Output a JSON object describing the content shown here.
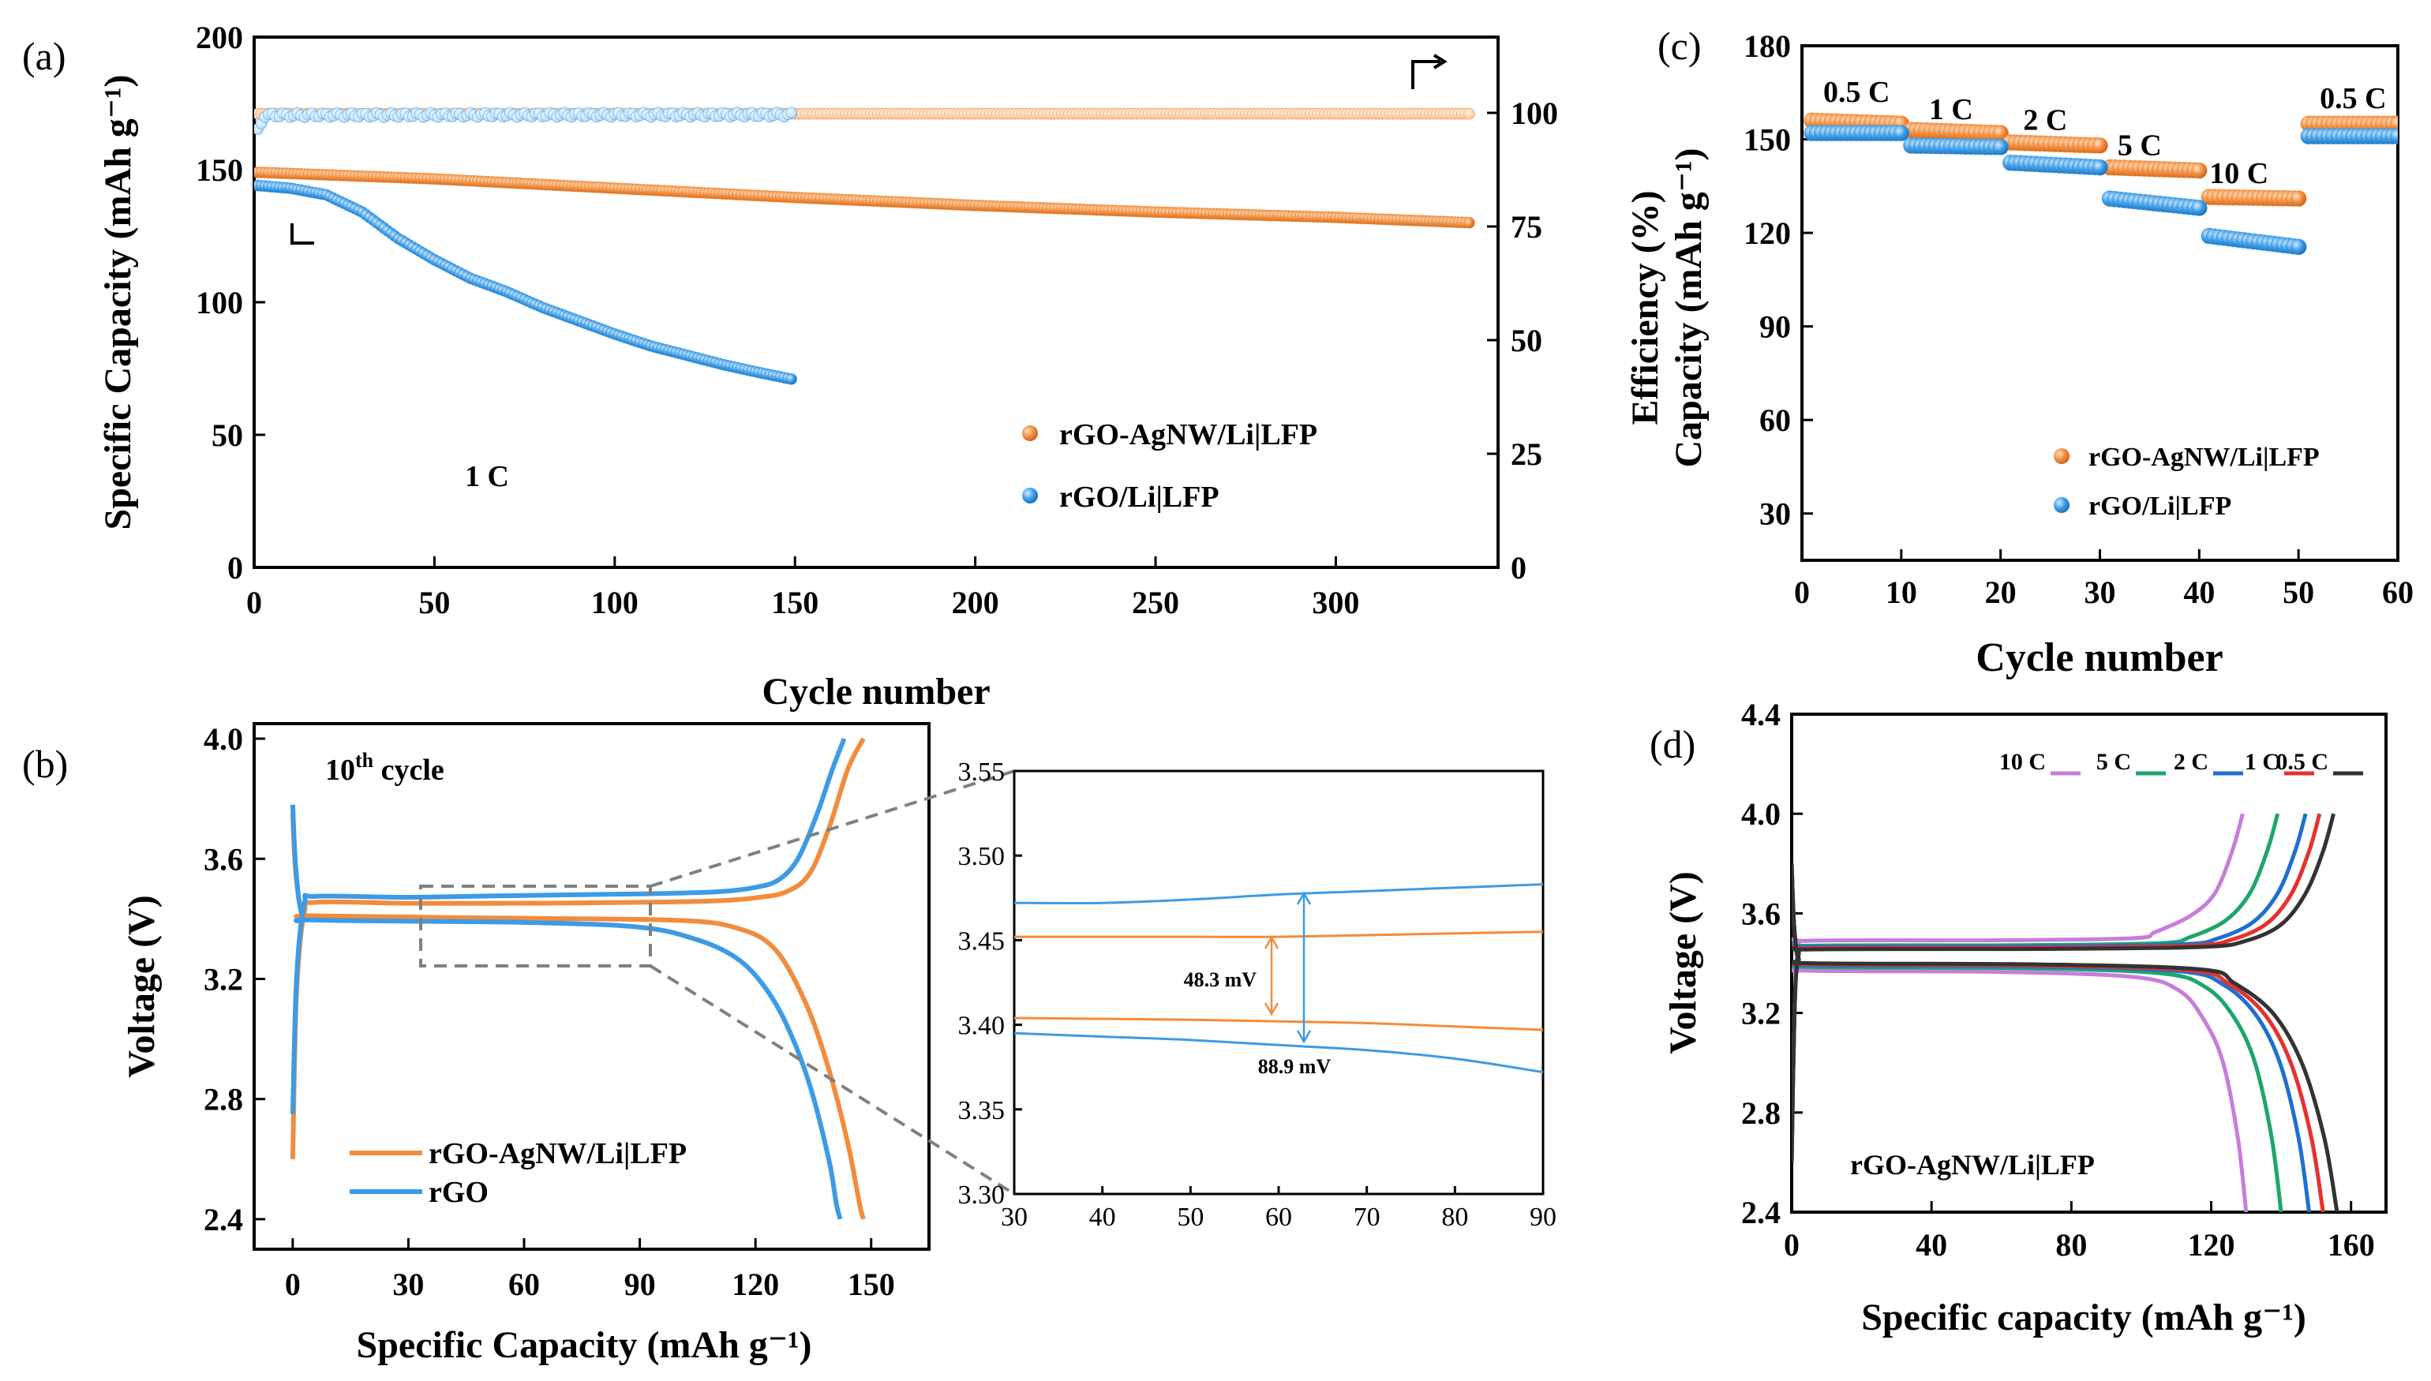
{
  "colors": {
    "orange": "#F28C3C",
    "blue": "#3C9BE6",
    "purple": "#C77DDB",
    "green": "#1DA66B",
    "darkblue": "#1F6FD1",
    "red": "#E5322D",
    "black": "#333333",
    "gray": "#808080"
  },
  "chart_data": [
    {
      "id": "a",
      "type": "scatter",
      "panel_label": "(a)",
      "title": "",
      "xlabel": "Cycle number",
      "ylabel": "Specific Capacity (mAh g⁻¹)",
      "y2label": "",
      "xlim": [
        0,
        345
      ],
      "ylim": [
        0,
        200
      ],
      "y2lim": [
        0,
        116.67
      ],
      "xticks": [
        0,
        50,
        100,
        150,
        200,
        250,
        300
      ],
      "yticks": [
        0,
        50,
        100,
        150,
        200
      ],
      "y2ticks": [
        0,
        25,
        50,
        75,
        100
      ],
      "annotation": "1 C",
      "series": [
        {
          "name": "rGO-AgNW/Li|LFP",
          "color": "orange",
          "axis": "left",
          "kind": "capacity",
          "points": [
            [
              1,
              149
            ],
            [
              50,
              146.5
            ],
            [
              100,
              143
            ],
            [
              150,
              139.5
            ],
            [
              200,
              136.5
            ],
            [
              250,
              134
            ],
            [
              300,
              132
            ],
            [
              337,
              130
            ]
          ]
        },
        {
          "name": "rGO/Li|LFP",
          "color": "blue",
          "axis": "left",
          "kind": "capacity",
          "points": [
            [
              1,
              144
            ],
            [
              10,
              143
            ],
            [
              20,
              140.5
            ],
            [
              30,
              134
            ],
            [
              40,
              124
            ],
            [
              50,
              116
            ],
            [
              60,
              109
            ],
            [
              70,
              104
            ],
            [
              80,
              98
            ],
            [
              90,
              93
            ],
            [
              100,
              88
            ],
            [
              110,
              83.5
            ],
            [
              120,
              80
            ],
            [
              130,
              76.5
            ],
            [
              140,
              73.5
            ],
            [
              149,
              71
            ]
          ]
        },
        {
          "name": "rGO-AgNW/Li|LFP efficiency",
          "color": "orange",
          "axis": "right",
          "kind": "efficiency",
          "points": [
            [
              1,
              99.8
            ],
            [
              337,
              99.8
            ]
          ]
        },
        {
          "name": "rGO/Li|LFP efficiency",
          "color": "blue",
          "axis": "right",
          "kind": "efficiency",
          "points": [
            [
              1,
              96
            ],
            [
              3,
              99.5
            ],
            [
              149,
              99.6
            ]
          ]
        }
      ],
      "legend": [
        "rGO-AgNW/Li|LFP",
        "rGO/Li|LFP"
      ]
    },
    {
      "id": "b",
      "type": "line",
      "panel_label": "(b)",
      "xlabel": "Specific Capacity (mAh g⁻¹)",
      "ylabel": "Voltage (V)",
      "xlim": [
        -10,
        165
      ],
      "ylim": [
        2.3,
        4.05
      ],
      "xticks": [
        0,
        30,
        60,
        90,
        120,
        150
      ],
      "yticks": [
        2.4,
        2.8,
        3.2,
        3.6,
        4.0
      ],
      "annotation_main": "10",
      "annotation_sup": "th",
      "annotation_tail": " cycle",
      "series": [
        {
          "name": "rGO-AgNW/Li|LFP",
          "color": "orange",
          "charge": [
            [
              0,
              2.6
            ],
            [
              1,
              3.15
            ],
            [
              3,
              3.42
            ],
            [
              6,
              3.455
            ],
            [
              30,
              3.452
            ],
            [
              60,
              3.452
            ],
            [
              90,
              3.455
            ],
            [
              110,
              3.46
            ],
            [
              120,
              3.47
            ],
            [
              128,
              3.49
            ],
            [
              134,
              3.55
            ],
            [
              139,
              3.7
            ],
            [
              144,
              3.9
            ],
            [
              148,
              4.0
            ]
          ],
          "discharge": [
            [
              0,
              3.75
            ],
            [
              0.8,
              3.55
            ],
            [
              2.5,
              3.42
            ],
            [
              6,
              3.41
            ],
            [
              60,
              3.402
            ],
            [
              100,
              3.395
            ],
            [
              115,
              3.37
            ],
            [
              125,
              3.3
            ],
            [
              133,
              3.12
            ],
            [
              139,
              2.9
            ],
            [
              144,
              2.65
            ],
            [
              147,
              2.45
            ],
            [
              148,
              2.4
            ]
          ]
        },
        {
          "name": "rGO",
          "color": "blue",
          "charge": [
            [
              0,
              2.75
            ],
            [
              1,
              3.2
            ],
            [
              3,
              3.45
            ],
            [
              6,
              3.475
            ],
            [
              30,
              3.472
            ],
            [
              60,
              3.478
            ],
            [
              90,
              3.483
            ],
            [
              110,
              3.49
            ],
            [
              120,
              3.505
            ],
            [
              126,
              3.53
            ],
            [
              131,
              3.6
            ],
            [
              136,
              3.75
            ],
            [
              140,
              3.9
            ],
            [
              143,
              4.0
            ]
          ],
          "discharge": [
            [
              0,
              3.78
            ],
            [
              0.8,
              3.57
            ],
            [
              2.5,
              3.41
            ],
            [
              6,
              3.396
            ],
            [
              60,
              3.388
            ],
            [
              90,
              3.372
            ],
            [
              105,
              3.33
            ],
            [
              115,
              3.27
            ],
            [
              122,
              3.18
            ],
            [
              128,
              3.05
            ],
            [
              134,
              2.85
            ],
            [
              139,
              2.6
            ],
            [
              141,
              2.45
            ],
            [
              142,
              2.4
            ]
          ]
        }
      ],
      "legend": [
        "rGO-AgNW/Li|LFP",
        "rGO"
      ]
    },
    {
      "id": "b-inset",
      "type": "line",
      "xlim": [
        30,
        90
      ],
      "ylim": [
        3.3,
        3.55
      ],
      "xticks": [
        30,
        40,
        50,
        60,
        70,
        80,
        90
      ],
      "yticks": [
        3.3,
        3.35,
        3.4,
        3.45,
        3.5,
        3.55
      ],
      "annotations": [
        "48.3 mV",
        "88.9 mV"
      ],
      "series": [
        {
          "name": "rGO charge",
          "color": "blue",
          "points": [
            [
              30,
              3.472
            ],
            [
              40,
              3.472
            ],
            [
              50,
              3.474
            ],
            [
              60,
              3.477
            ],
            [
              70,
              3.479
            ],
            [
              80,
              3.481
            ],
            [
              90,
              3.483
            ]
          ]
        },
        {
          "name": "rGO-AgNW charge",
          "color": "orange",
          "points": [
            [
              30,
              3.452
            ],
            [
              50,
              3.452
            ],
            [
              60,
              3.452
            ],
            [
              70,
              3.453
            ],
            [
              80,
              3.454
            ],
            [
              90,
              3.455
            ]
          ]
        },
        {
          "name": "rGO-AgNW discharge",
          "color": "orange",
          "points": [
            [
              30,
              3.404
            ],
            [
              50,
              3.403
            ],
            [
              60,
              3.402
            ],
            [
              70,
              3.401
            ],
            [
              80,
              3.399
            ],
            [
              90,
              3.397
            ]
          ]
        },
        {
          "name": "rGO discharge",
          "color": "blue",
          "points": [
            [
              30,
              3.395
            ],
            [
              40,
              3.393
            ],
            [
              50,
              3.391
            ],
            [
              60,
              3.388
            ],
            [
              70,
              3.385
            ],
            [
              80,
              3.38
            ],
            [
              90,
              3.372
            ]
          ]
        }
      ]
    },
    {
      "id": "c",
      "type": "scatter",
      "panel_label": "(c)",
      "xlabel": "Cycle number",
      "ylabel_top": "Efficiency (%)",
      "ylabel": "Capacity (mAh g⁻¹)",
      "xlim": [
        0,
        60
      ],
      "ylim": [
        15,
        180
      ],
      "xticks": [
        0,
        10,
        20,
        30,
        40,
        50,
        60
      ],
      "yticks": [
        30,
        60,
        90,
        120,
        150,
        180
      ],
      "rates": [
        {
          "label": "0.5 C",
          "x": 5.5,
          "y": 162
        },
        {
          "label": "1 C",
          "x": 15,
          "y": 156.5
        },
        {
          "label": "2 C",
          "x": 24.5,
          "y": 153
        },
        {
          "label": "5 C",
          "x": 34,
          "y": 145
        },
        {
          "label": "10 C",
          "x": 44,
          "y": 136
        },
        {
          "label": "0.5 C",
          "x": 55.5,
          "y": 160
        }
      ],
      "series": [
        {
          "name": "rGO-AgNW/Li|LFP",
          "color": "orange",
          "segments": [
            [
              1,
              10,
              156,
              155
            ],
            [
              11,
              20,
              153,
              152
            ],
            [
              21,
              30,
              149,
              148
            ],
            [
              31,
              40,
              141,
              140
            ],
            [
              41,
              50,
              131.5,
              131
            ],
            [
              51,
              60,
              155,
              155
            ]
          ]
        },
        {
          "name": "rGO/Li|LFP",
          "color": "blue",
          "segments": [
            [
              1,
              10,
              152,
              152
            ],
            [
              11,
              20,
              148,
              147.5
            ],
            [
              21,
              30,
              142.5,
              141
            ],
            [
              31,
              40,
              131,
              128
            ],
            [
              41,
              50,
              119,
              115.5
            ],
            [
              51,
              60,
              151,
              151
            ]
          ]
        }
      ],
      "legend": [
        "rGO-AgNW/Li|LFP",
        "rGO/Li|LFP"
      ]
    },
    {
      "id": "d",
      "type": "line",
      "panel_label": "(d)",
      "xlabel": "Specific capacity (mAh g⁻¹)",
      "ylabel": "Voltage (V)",
      "xlim": [
        0,
        170
      ],
      "ylim": [
        2.4,
        4.4
      ],
      "xticks": [
        0,
        40,
        80,
        120,
        160
      ],
      "yticks": [
        2.4,
        2.8,
        3.2,
        3.6,
        4.0,
        4.4
      ],
      "annotation": "rGO-AgNW/Li|LFP",
      "series": [
        {
          "name": "10 C",
          "color": "purple",
          "cap": 130,
          "ch": 3.49,
          "dis": 3.37
        },
        {
          "name": "5 C",
          "color": "green",
          "cap": 140,
          "ch": 3.47,
          "dis": 3.385
        },
        {
          "name": "2 C",
          "color": "darkblue",
          "cap": 148,
          "ch": 3.465,
          "dis": 3.392
        },
        {
          "name": "1 C",
          "color": "red",
          "cap": 152,
          "ch": 3.46,
          "dis": 3.396
        },
        {
          "name": "0.5 C",
          "color": "black",
          "cap": 156,
          "ch": 3.455,
          "dis": 3.4
        }
      ],
      "legend": [
        "10 C",
        "5 C",
        "2 C",
        "1 C",
        "0.5 C"
      ]
    }
  ]
}
